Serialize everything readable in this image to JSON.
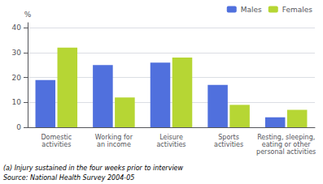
{
  "chart_data": {
    "type": "bar",
    "categories": [
      "Domestic\nactivities",
      "Working for\nan income",
      "Leisure\nactivities",
      "Sports\nactivities",
      "Resting, sleeping,\neating or other\npersonal activities"
    ],
    "series": [
      {
        "name": "Males",
        "values": [
          19,
          25,
          26,
          17,
          4
        ]
      },
      {
        "name": "Females",
        "values": [
          32,
          12,
          28,
          9,
          7
        ]
      }
    ],
    "ylabel": "%",
    "ylim": [
      0,
      42
    ],
    "yticks": [
      0,
      10,
      20,
      30,
      40
    ],
    "grid": true,
    "legend": "upper right",
    "annotations": [
      "(a) Injury sustained in the four weeks prior to interview",
      "Source: National Health Survey 2004-05"
    ]
  }
}
